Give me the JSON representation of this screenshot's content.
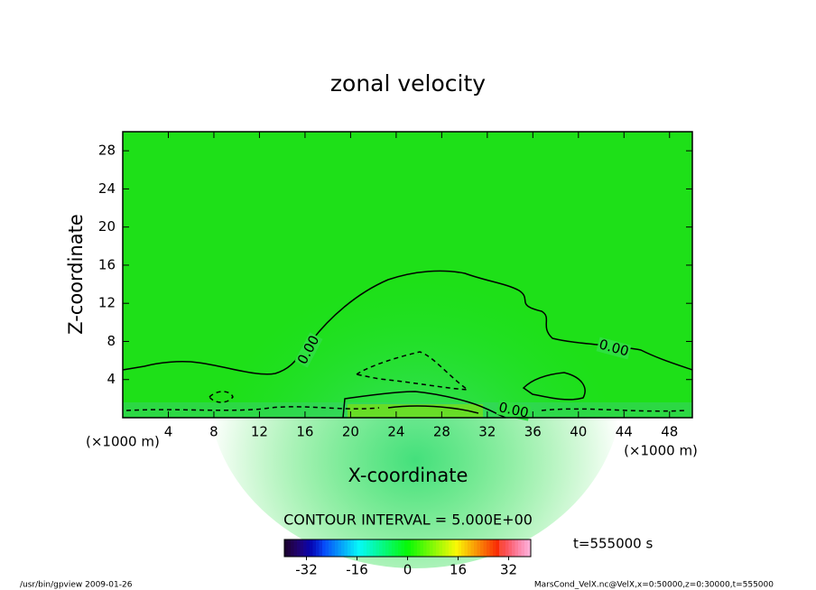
{
  "chart_data": {
    "type": "contour",
    "title": "zonal velocity",
    "x_label": "X-coordinate",
    "y_label": "Z-coordinate",
    "x_units": "(×1000 m)",
    "y_units": "(×1000 m)",
    "xlim": [
      0,
      50
    ],
    "xticks": [
      4,
      8,
      12,
      16,
      20,
      24,
      28,
      32,
      36,
      40,
      44,
      48
    ],
    "ylim": [
      0,
      30
    ],
    "yticks": [
      4,
      8,
      12,
      16,
      20,
      24,
      28
    ],
    "contour_levels": [
      -5,
      {
        "value": 0,
        "label": "0.00"
      },
      5
    ],
    "contour_interval": {
      "value": 5,
      "label": "CONTOUR INTERVAL = 5.000E+00"
    },
    "clim": [
      -39,
      39
    ],
    "cticks": [
      -32,
      -16,
      0,
      16,
      32
    ],
    "time_label": "t=555000 s",
    "footer_left": "/usr/bin/gpview  2009-01-26",
    "footer_right": "MarsCond_VelX.nc@VelX,x=0:50000,z=0:30000,t=555000"
  }
}
